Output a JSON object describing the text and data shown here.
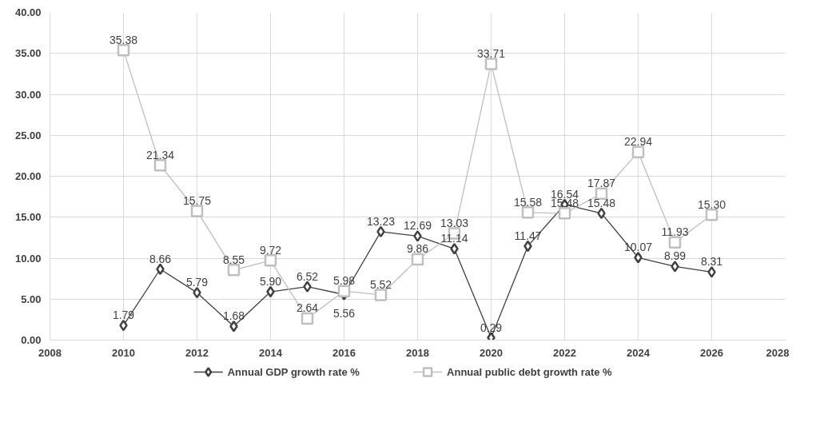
{
  "chart_data": {
    "type": "line",
    "x": [
      2010,
      2011,
      2012,
      2013,
      2014,
      2015,
      2016,
      2017,
      2018,
      2019,
      2020,
      2021,
      2022,
      2023,
      2024,
      2025,
      2026
    ],
    "series": [
      {
        "name": "Annual GDP growth rate %",
        "color": "#404040",
        "marker": "diamond",
        "values": [
          1.79,
          8.66,
          5.79,
          1.68,
          5.9,
          6.52,
          5.56,
          13.23,
          12.69,
          11.14,
          0.29,
          11.47,
          16.54,
          15.48,
          10.07,
          8.99,
          8.31
        ],
        "value_labels": [
          "1.79",
          "8.66",
          "5.79",
          "1.68",
          "5.90",
          "6.52",
          "5.56",
          "13.23",
          "12.69",
          "11.14",
          "0.29",
          "11.47",
          "16.54",
          "15.48",
          "10.07",
          "8.99",
          "8.31"
        ]
      },
      {
        "name": "Annual public debt growth rate %",
        "color": "#bfbfbf",
        "marker": "square",
        "values": [
          35.38,
          21.34,
          15.75,
          8.55,
          9.72,
          2.64,
          5.98,
          5.52,
          9.86,
          13.03,
          33.71,
          15.58,
          15.48,
          17.87,
          22.94,
          11.93,
          15.3
        ],
        "value_labels": [
          "35.38",
          "21.34",
          "15.75",
          "8.55",
          "9.72",
          "2.64",
          "5.98",
          "5.52",
          "9.86",
          "13.03",
          "33.71",
          "15.58",
          "15.48",
          "17.87",
          "22.94",
          "11.93",
          "15.30"
        ]
      }
    ],
    "xlim": [
      2008,
      2028
    ],
    "xticks": [
      2008,
      2010,
      2012,
      2014,
      2016,
      2018,
      2020,
      2022,
      2024,
      2026,
      2028
    ],
    "ylim": [
      0,
      40
    ],
    "yticks": [
      {
        "value": 0,
        "label": "0.00"
      },
      {
        "value": 5,
        "label": "5.00"
      },
      {
        "value": 10,
        "label": "10.00"
      },
      {
        "value": 15,
        "label": "15.00"
      },
      {
        "value": 20,
        "label": "20.00"
      },
      {
        "value": 25,
        "label": "25.00"
      },
      {
        "value": 30,
        "label": "30.00"
      },
      {
        "value": 35,
        "label": "35.00"
      },
      {
        "value": 40,
        "label": "40.00"
      }
    ],
    "grid": true,
    "legend": "bottom",
    "line_style": "solid"
  }
}
